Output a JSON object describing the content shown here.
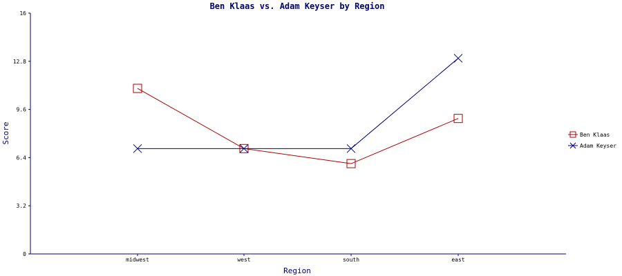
{
  "chart_data": {
    "type": "line",
    "title": "Ben Klaas vs. Adam Keyser by Region",
    "xlabel": "Region",
    "ylabel": "Score",
    "categories": [
      "midwest",
      "west",
      "south",
      "east"
    ],
    "ylim": [
      0,
      16
    ],
    "yticks": [
      "0",
      "3.2",
      "6.4",
      "9.6",
      "12.8",
      "16"
    ],
    "grid": false,
    "legend_position": "right",
    "series": [
      {
        "name": "Ben Klaas",
        "values": [
          11,
          7,
          6,
          9
        ],
        "color": "#aa0000",
        "marker": "square"
      },
      {
        "name": "Adam Keyser",
        "values": [
          7,
          7,
          7,
          13
        ],
        "color": "#000080",
        "marker": "x"
      }
    ]
  }
}
